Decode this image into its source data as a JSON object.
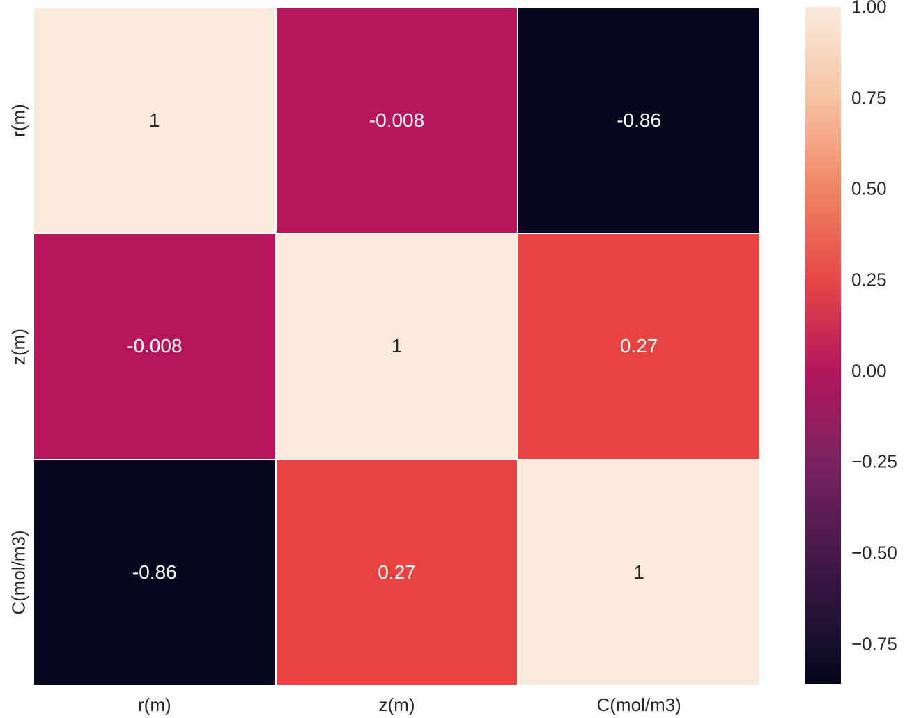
{
  "chart_data": {
    "type": "heatmap",
    "title": "",
    "xlabel": "",
    "ylabel": "",
    "categories": [
      "r(m)",
      "z(m)",
      "C(mol/m3)"
    ],
    "matrix": [
      [
        1,
        -0.008,
        -0.86
      ],
      [
        -0.008,
        1,
        0.27
      ],
      [
        -0.86,
        0.27,
        1
      ]
    ],
    "annotations": [
      [
        "1",
        "-0.008",
        "-0.86"
      ],
      [
        "-0.008",
        "1",
        "0.27"
      ],
      [
        "-0.86",
        "0.27",
        "1"
      ]
    ],
    "cell_colors": [
      [
        "#faeadc",
        "#b5165c",
        "#05081e"
      ],
      [
        "#b5165c",
        "#faeadc",
        "#e84340"
      ],
      [
        "#05081e",
        "#e84340",
        "#faeadc"
      ]
    ],
    "annot_colors": [
      [
        "#262626",
        "#ffffff",
        "#ffffff"
      ],
      [
        "#ffffff",
        "#262626",
        "#ffffff"
      ],
      [
        "#ffffff",
        "#ffffff",
        "#262626"
      ]
    ],
    "colormap": "rocket",
    "legend_position": "right",
    "grid": false,
    "colorbar": {
      "vmin": -0.86,
      "vmax": 1.0,
      "ticks": [
        {
          "label": "1.00",
          "value": 1.0
        },
        {
          "label": "0.75",
          "value": 0.75
        },
        {
          "label": "0.50",
          "value": 0.5
        },
        {
          "label": "0.25",
          "value": 0.25
        },
        {
          "label": "0.00",
          "value": 0.0
        },
        {
          "label": "−0.25",
          "value": -0.25
        },
        {
          "label": "−0.50",
          "value": -0.5
        },
        {
          "label": "−0.75",
          "value": -0.75
        }
      ],
      "gradient_stops": [
        {
          "f": 0.0,
          "color": "#03051a"
        },
        {
          "f": 0.059,
          "color": "#170e2e"
        },
        {
          "f": 0.194,
          "color": "#481a4b"
        },
        {
          "f": 0.328,
          "color": "#7a2360"
        },
        {
          "f": 0.462,
          "color": "#b4165c"
        },
        {
          "f": 0.597,
          "color": "#e54745"
        },
        {
          "f": 0.731,
          "color": "#ef8565"
        },
        {
          "f": 0.866,
          "color": "#f6c3a3"
        },
        {
          "f": 1.0,
          "color": "#faebdd"
        }
      ]
    }
  }
}
